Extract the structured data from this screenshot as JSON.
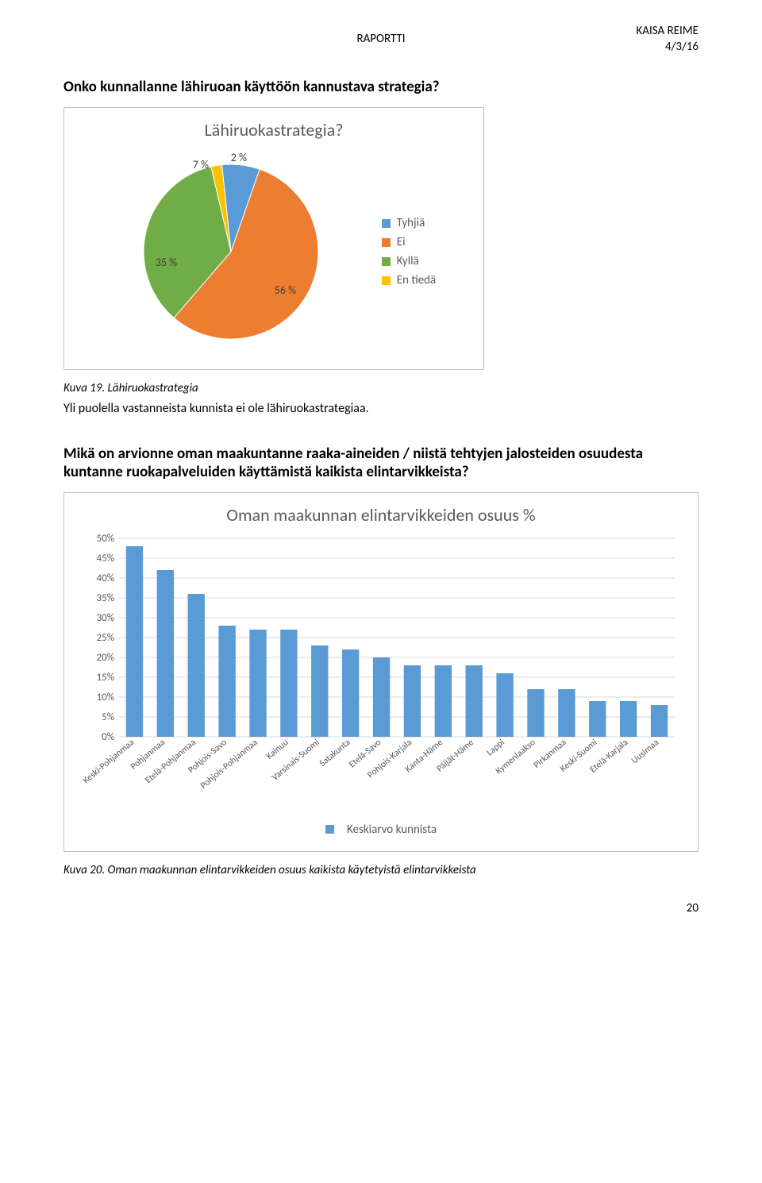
{
  "header": {
    "center": "RAPORTTI",
    "author": "KAISA REIME",
    "date": "4/3/16"
  },
  "q1": {
    "question": "Onko kunnallanne lähiruoan käyttöön kannustava strategia?",
    "caption": "Kuva 19. Lähiruokastrategia",
    "body": "Yli puolella vastanneista kunnista ei ole lähiruokastrategiaa."
  },
  "pie": {
    "title": "Lähiruokastrategia?",
    "title_color": "#5b5b5b",
    "title_fontsize": 22,
    "background": "#ffffff",
    "slices": [
      {
        "label": "Tyhjiä",
        "value": 7,
        "color": "#5b9bd5",
        "label_text": "7 %"
      },
      {
        "label": "Ei",
        "value": 56,
        "color": "#ed7d31",
        "label_text": "56 %"
      },
      {
        "label": "Kyllä",
        "value": 35,
        "color": "#70ad47",
        "label_text": "35 %"
      },
      {
        "label": "En tiedä",
        "value": 2,
        "color": "#ffc000",
        "label_text": "2 %"
      }
    ],
    "legend_order": [
      "Tyhjiä",
      "Ei",
      "Kyllä",
      "En tiedä"
    ],
    "start_angle_deg": -6
  },
  "q2": {
    "question": "Mikä on arvionne oman maakuntanne raaka-aineiden / niistä tehtyjen jalosteiden osuudesta kuntanne ruokapalveluiden käyttämistä kaikista elintarvikkeista?",
    "caption": "Kuva 20. Oman maakunnan elintarvikkeiden osuus kaikista käytetyistä elintarvikkeista"
  },
  "bar": {
    "title": "Oman maakunnan elintarvikkeiden osuus %",
    "title_color": "#5b5b5b",
    "title_fontsize": 22,
    "background": "#ffffff",
    "bar_color": "#5b9bd5",
    "grid_color": "#d9d9d9",
    "label_color": "#595959",
    "axis_fontsize": 13,
    "cat_fontsize": 11.5,
    "ylim": [
      0,
      50
    ],
    "ytick_step": 5,
    "yticks": [
      "0%",
      "5%",
      "10%",
      "15%",
      "20%",
      "25%",
      "30%",
      "35%",
      "40%",
      "45%",
      "50%"
    ],
    "categories": [
      "Keski-Pohjanmaa",
      "Pohjanmaa",
      "Etelä-Pohjanmaa",
      "Pohjois-Savo",
      "Pohjois-Pohjanmaa",
      "Kainuu",
      "Varsinais-Suomi",
      "Satakunta",
      "Etelä-Savo",
      "Pohjois-Karjala",
      "Kanta-Häme",
      "Päijät-Häme",
      "Lappi",
      "Kymenlaakso",
      "Pirkanmaa",
      "Keski-Suomi",
      "Etelä-Karjala",
      "Uusimaa"
    ],
    "values": [
      48,
      42,
      36,
      28,
      27,
      27,
      23,
      22,
      20,
      18,
      18,
      18,
      16,
      12,
      12,
      9,
      9,
      8
    ],
    "legend_label": "Keskiarvo kunnista",
    "legend_swatch": "#5b9bd5"
  },
  "page_number": "20"
}
